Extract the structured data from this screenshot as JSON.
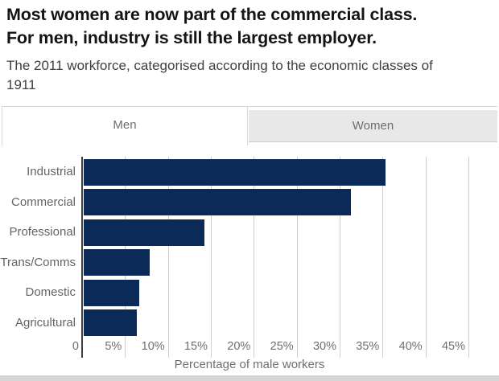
{
  "header": {
    "title_line1": "Most women are now part of the commercial class.",
    "title_line2": "For men, industry is still the largest employer.",
    "subtitle": "The 2011 workforce, categorised according to the economic classes of 1911"
  },
  "tabs": [
    {
      "label": "Men",
      "active": true
    },
    {
      "label": "Women",
      "active": false
    }
  ],
  "chart_data": {
    "type": "bar",
    "orientation": "horizontal",
    "title": "Most women are now part of the commercial class. For men, industry is still the largest employer.",
    "subtitle": "The 2011 workforce, categorised according to the economic classes of 1911",
    "categories": [
      "Industrial",
      "Commercial",
      "Professional",
      "Trans/Comms",
      "Domestic",
      "Agricultural"
    ],
    "values": [
      35.2,
      31.1,
      14.1,
      7.7,
      6.5,
      6.2
    ],
    "xlabel": "Percentage of male workers",
    "ylabel": "",
    "x_ticks": [
      "0",
      "5%",
      "10%",
      "15%",
      "20%",
      "25%",
      "30%",
      "35%",
      "40%",
      "45%"
    ],
    "x_tick_values": [
      0,
      5,
      10,
      15,
      20,
      25,
      30,
      35,
      40,
      45
    ],
    "xlim": [
      0,
      45
    ],
    "grid": true,
    "legend": "none",
    "colors": {
      "bar": "#0c2a58",
      "gridline": "#cfcfcf",
      "axis_line": "#3f3f3f"
    }
  }
}
